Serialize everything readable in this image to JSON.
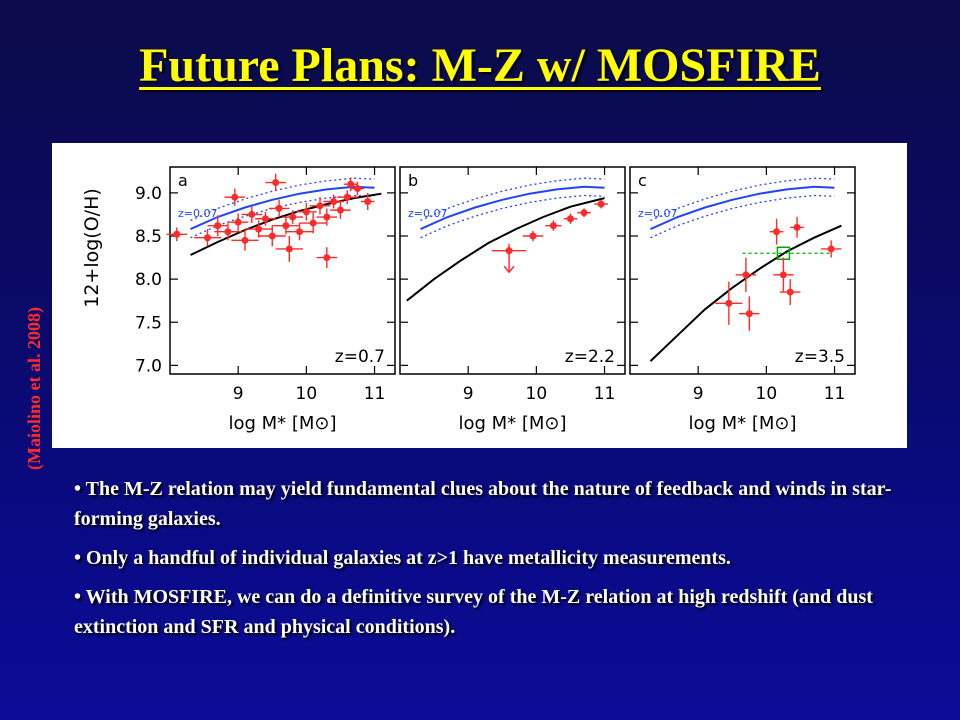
{
  "slide": {
    "title": "Future Plans: M-Z w/ MOSFIRE",
    "credit": "(Maiolino et al. 2008)",
    "bullets": [
      "•  The M-Z relation may yield fundamental clues about the nature of feedback and winds in star-forming galaxies.",
      "• Only a handful of individual galaxies at z>1 have metallicity measurements.",
      "• With MOSFIRE, we can do a definitive survey of the M-Z relation at high redshift (and dust extinction and SFR and physical conditions)."
    ]
  },
  "colors": {
    "title": "#ffff00",
    "credit": "#ff2a2a",
    "bullet_text": "#ffffff",
    "data_points": "#ff2a2a",
    "reference_curve": "#2244ff",
    "fit_curve": "#000000",
    "stack_marker": "#00aa00"
  },
  "figure": {
    "ylabel": "12+log(O/H)",
    "ytick_labels": [
      "9.0",
      "8.5",
      "8.0",
      "7.5",
      "7.0"
    ],
    "panels": [
      {
        "letter": "a",
        "ref_label": "z=0.07",
        "redshift_label": "z=0.7",
        "xtick_labels": [
          "9",
          "10",
          "11"
        ],
        "xlabel": "log M* [M⊙]"
      },
      {
        "letter": "b",
        "ref_label": "z=0.07",
        "redshift_label": "z=2.2",
        "xtick_labels": [
          "9",
          "10",
          "11"
        ],
        "xlabel": "log M* [M⊙]"
      },
      {
        "letter": "c",
        "ref_label": "z=0.07",
        "redshift_label": "z=3.5",
        "xtick_labels": [
          "9",
          "10",
          "11"
        ],
        "xlabel": "log M* [M⊙]"
      }
    ]
  },
  "chart_data": {
    "type": "scatter",
    "xlim": [
      8.0,
      11.3
    ],
    "ylim": [
      6.9,
      9.3
    ],
    "xticks": [
      9,
      10,
      11
    ],
    "yticks": [
      7.0,
      7.5,
      8.0,
      8.5,
      9.0
    ],
    "reference_curve": {
      "x": [
        8.3,
        8.7,
        9.1,
        9.5,
        9.9,
        10.3,
        10.7,
        11.0
      ],
      "y": [
        8.58,
        8.72,
        8.83,
        8.92,
        8.99,
        9.04,
        9.07,
        9.06
      ],
      "scatter_offset": 0.1
    },
    "panels": [
      {
        "redshift": 0.7,
        "fit_curve": {
          "x": [
            8.3,
            8.7,
            9.1,
            9.5,
            9.9,
            10.3,
            10.7,
            11.1
          ],
          "y": [
            8.28,
            8.43,
            8.57,
            8.69,
            8.79,
            8.87,
            8.94,
            8.99
          ]
        },
        "points": [
          {
            "x": 8.1,
            "y": 8.52,
            "xerr": 0.15,
            "yerr": 0.08
          },
          {
            "x": 8.55,
            "y": 8.48,
            "xerr": 0.2,
            "yerr": 0.1
          },
          {
            "x": 8.7,
            "y": 8.62,
            "xerr": 0.15,
            "yerr": 0.12
          },
          {
            "x": 8.85,
            "y": 8.55,
            "xerr": 0.2,
            "yerr": 0.1
          },
          {
            "x": 9.0,
            "y": 8.66,
            "xerr": 0.15,
            "yerr": 0.1
          },
          {
            "x": 9.1,
            "y": 8.45,
            "xerr": 0.2,
            "yerr": 0.12
          },
          {
            "x": 9.2,
            "y": 8.75,
            "xerr": 0.15,
            "yerr": 0.1
          },
          {
            "x": 9.3,
            "y": 8.58,
            "xerr": 0.2,
            "yerr": 0.1
          },
          {
            "x": 9.4,
            "y": 8.7,
            "xerr": 0.15,
            "yerr": 0.08
          },
          {
            "x": 9.5,
            "y": 8.5,
            "xerr": 0.2,
            "yerr": 0.12
          },
          {
            "x": 9.6,
            "y": 8.82,
            "xerr": 0.15,
            "yerr": 0.1
          },
          {
            "x": 9.7,
            "y": 8.62,
            "xerr": 0.2,
            "yerr": 0.1
          },
          {
            "x": 9.8,
            "y": 8.72,
            "xerr": 0.15,
            "yerr": 0.08
          },
          {
            "x": 9.9,
            "y": 8.55,
            "xerr": 0.2,
            "yerr": 0.1
          },
          {
            "x": 10.0,
            "y": 8.78,
            "xerr": 0.15,
            "yerr": 0.1
          },
          {
            "x": 10.1,
            "y": 8.65,
            "xerr": 0.2,
            "yerr": 0.12
          },
          {
            "x": 10.2,
            "y": 8.85,
            "xerr": 0.15,
            "yerr": 0.1
          },
          {
            "x": 10.3,
            "y": 8.72,
            "xerr": 0.15,
            "yerr": 0.1
          },
          {
            "x": 10.4,
            "y": 8.9,
            "xerr": 0.15,
            "yerr": 0.08
          },
          {
            "x": 10.5,
            "y": 8.8,
            "xerr": 0.15,
            "yerr": 0.1
          },
          {
            "x": 10.6,
            "y": 8.95,
            "xerr": 0.15,
            "yerr": 0.08
          },
          {
            "x": 10.75,
            "y": 9.05,
            "xerr": 0.1,
            "yerr": 0.08
          },
          {
            "x": 10.65,
            "y": 9.1,
            "xerr": 0.1,
            "yerr": 0.08
          },
          {
            "x": 9.55,
            "y": 9.12,
            "xerr": 0.15,
            "yerr": 0.1
          },
          {
            "x": 10.3,
            "y": 8.25,
            "xerr": 0.15,
            "yerr": 0.12
          },
          {
            "x": 9.75,
            "y": 8.35,
            "xerr": 0.2,
            "yerr": 0.15
          },
          {
            "x": 8.95,
            "y": 8.95,
            "xerr": 0.15,
            "yerr": 0.1
          },
          {
            "x": 10.9,
            "y": 8.9,
            "xerr": 0.1,
            "yerr": 0.1
          }
        ]
      },
      {
        "redshift": 2.2,
        "fit_curve": {
          "x": [
            8.1,
            8.5,
            8.9,
            9.3,
            9.7,
            10.1,
            10.5,
            11.0
          ],
          "y": [
            7.75,
            8.0,
            8.22,
            8.42,
            8.58,
            8.72,
            8.84,
            8.94
          ]
        },
        "points": [
          {
            "x": 9.6,
            "y": 8.33,
            "xerr": 0.25,
            "yerr": 0.08
          },
          {
            "x": 9.95,
            "y": 8.5,
            "xerr": 0.15,
            "yerr": 0.06
          },
          {
            "x": 10.25,
            "y": 8.62,
            "xerr": 0.12,
            "yerr": 0.06
          },
          {
            "x": 10.5,
            "y": 8.7,
            "xerr": 0.1,
            "yerr": 0.06
          },
          {
            "x": 10.7,
            "y": 8.77,
            "xerr": 0.1,
            "yerr": 0.05
          },
          {
            "x": 10.95,
            "y": 8.87,
            "xerr": 0.1,
            "yerr": 0.05
          }
        ],
        "upper_limits": [
          {
            "x": 9.6,
            "y": 8.33
          }
        ]
      },
      {
        "redshift": 3.5,
        "fit_curve": {
          "x": [
            8.3,
            8.7,
            9.1,
            9.5,
            9.9,
            10.3,
            10.7,
            11.1
          ],
          "y": [
            7.05,
            7.35,
            7.65,
            7.9,
            8.12,
            8.32,
            8.48,
            8.62
          ]
        },
        "points": [
          {
            "x": 9.45,
            "y": 7.72,
            "xerr": 0.2,
            "yerr": 0.25
          },
          {
            "x": 9.7,
            "y": 8.05,
            "xerr": 0.15,
            "yerr": 0.2
          },
          {
            "x": 9.75,
            "y": 7.6,
            "xerr": 0.15,
            "yerr": 0.2
          },
          {
            "x": 10.15,
            "y": 8.55,
            "xerr": 0.1,
            "yerr": 0.15
          },
          {
            "x": 10.25,
            "y": 8.05,
            "xerr": 0.15,
            "yerr": 0.2
          },
          {
            "x": 10.35,
            "y": 7.85,
            "xerr": 0.15,
            "yerr": 0.15
          },
          {
            "x": 10.45,
            "y": 8.6,
            "xerr": 0.1,
            "yerr": 0.12
          },
          {
            "x": 10.95,
            "y": 8.35,
            "xerr": 0.15,
            "yerr": 0.1
          }
        ],
        "stack": {
          "x": 10.25,
          "y": 8.3,
          "xrange": [
            9.65,
            10.95
          ]
        }
      }
    ]
  }
}
